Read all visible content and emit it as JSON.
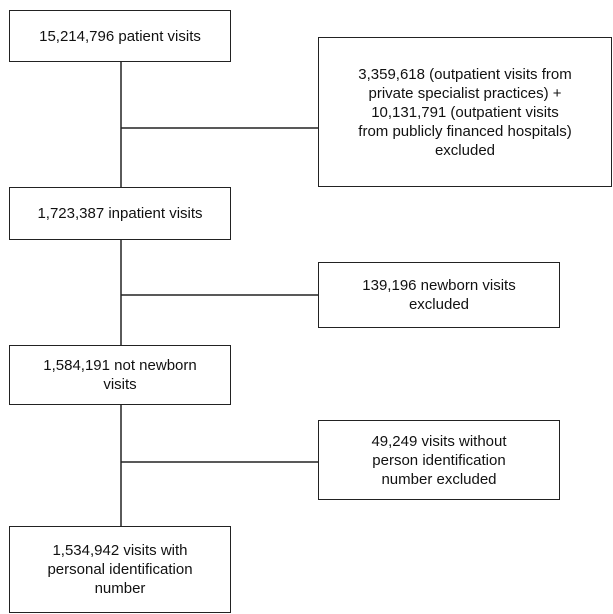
{
  "nodes": [
    {
      "lines": [
        "15,214,796 patient visits"
      ]
    },
    {
      "lines": [
        "3,359,618 (outpatient visits from",
        "private specialist practices) +",
        "10,131,791 (outpatient visits",
        "from publicly financed hospitals)",
        "excluded"
      ]
    },
    {
      "lines": [
        "1,723,387 inpatient visits"
      ]
    },
    {
      "lines": [
        "139,196 newborn visits",
        "excluded"
      ]
    },
    {
      "lines": [
        "1,584,191 not newborn",
        "visits"
      ]
    },
    {
      "lines": [
        "49,249 visits without",
        "person identification",
        "number excluded"
      ]
    },
    {
      "lines": [
        "1,534,942 visits with",
        "personal identification",
        "number"
      ]
    }
  ]
}
